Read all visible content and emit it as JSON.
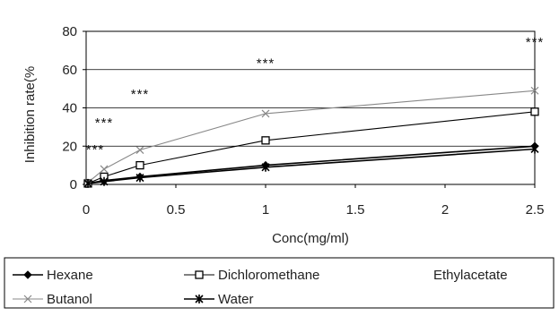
{
  "chart_data": {
    "type": "line",
    "xlabel": "Conc(mg/ml)",
    "ylabel": "Inhibition rate(%",
    "xlim": [
      0,
      2.5
    ],
    "ylim": [
      0,
      80
    ],
    "x_ticks": [
      "0",
      "0.5",
      "1",
      "1.5",
      "2",
      "2.5"
    ],
    "y_ticks": [
      "0",
      "20",
      "40",
      "60",
      "80"
    ],
    "grid": "horizontal",
    "legend_position": "bottom",
    "x": [
      0.01,
      0.1,
      0.3,
      1,
      2.5
    ],
    "series": [
      {
        "name": "Hexane",
        "marker": "diamond",
        "color": "#000000",
        "values": [
          0.5,
          2,
          4,
          10,
          20
        ]
      },
      {
        "name": "Dichloromethane",
        "marker": "square",
        "color": "#000000",
        "values": [
          0.5,
          4,
          10,
          23,
          38
        ]
      },
      {
        "name": "Ethylacetate",
        "marker": "none",
        "color": "#000000",
        "values": null
      },
      {
        "name": "Butanol",
        "marker": "x",
        "color": "#888888",
        "values": [
          1,
          8,
          18,
          37,
          49
        ]
      },
      {
        "name": "Water",
        "marker": "star",
        "color": "#000000",
        "values": [
          0.5,
          1.5,
          3.5,
          9,
          18.5
        ]
      }
    ],
    "annotations": [
      {
        "text": "***",
        "x": 0.05,
        "y": 16
      },
      {
        "text": "***",
        "x": 0.1,
        "y": 30
      },
      {
        "text": "***",
        "x": 0.3,
        "y": 45
      },
      {
        "text": "***",
        "x": 1.0,
        "y": 61
      },
      {
        "text": "***",
        "x": 2.5,
        "y": 72
      }
    ]
  }
}
